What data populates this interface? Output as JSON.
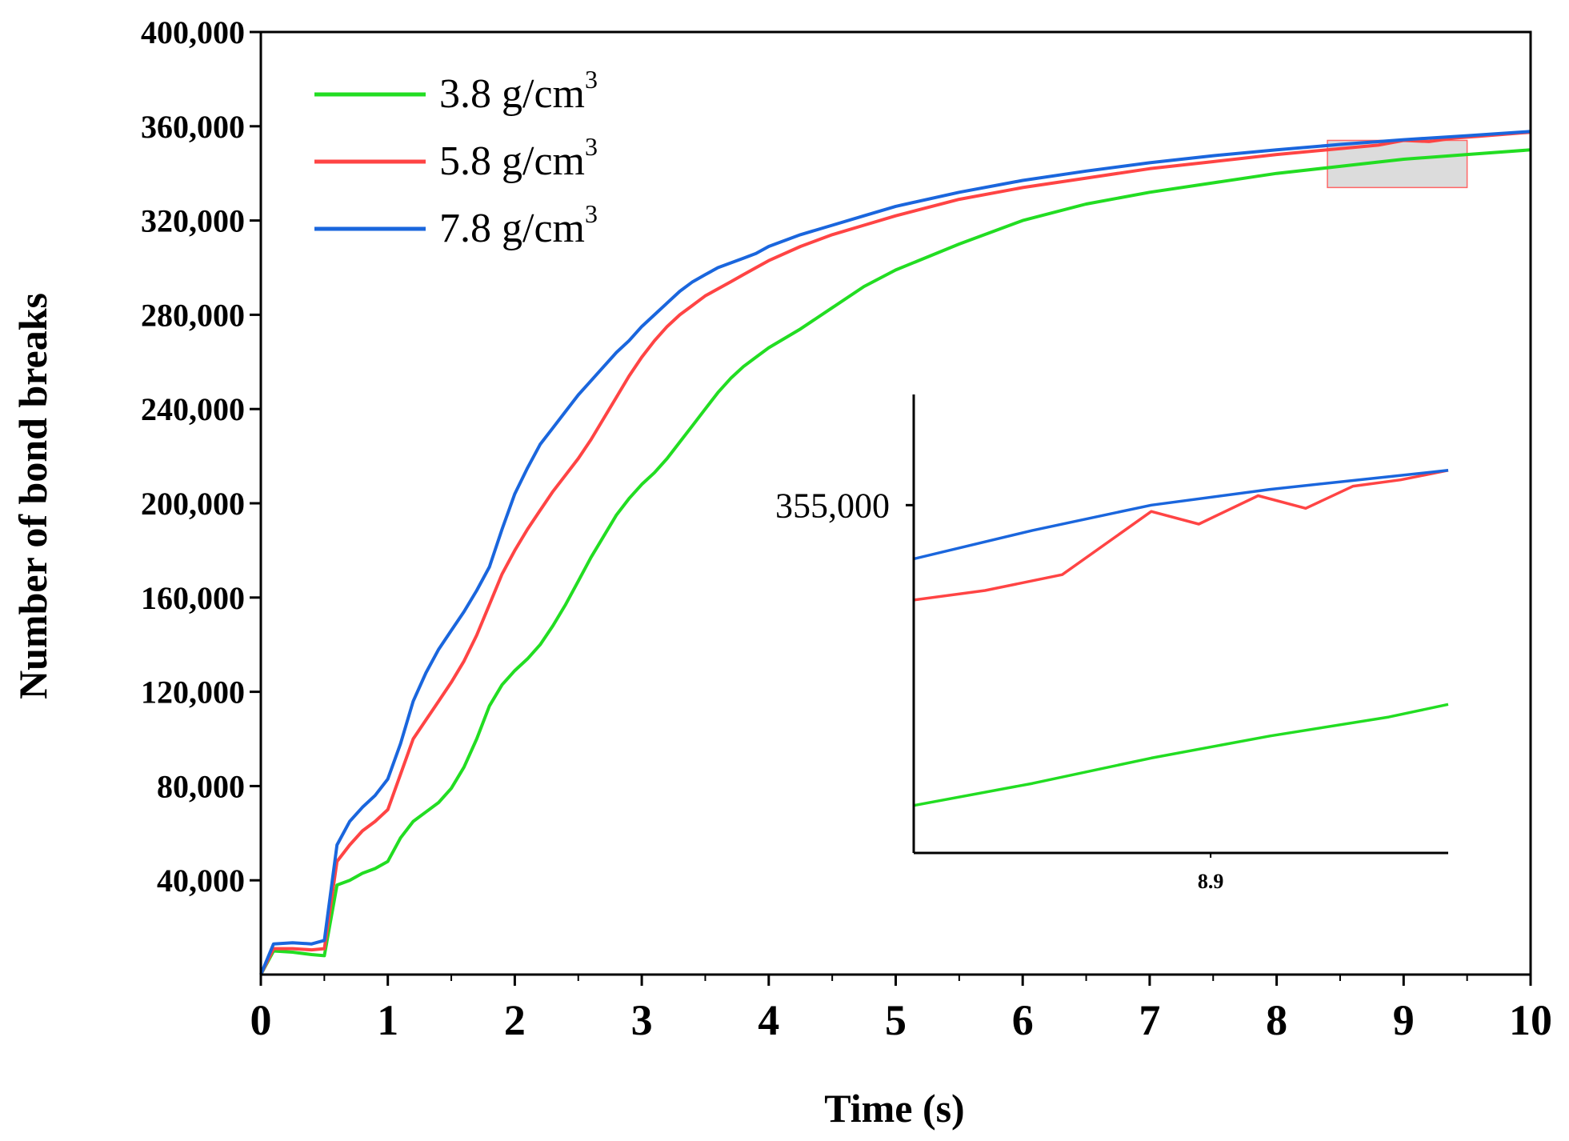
{
  "chart_data": {
    "type": "line",
    "title": "",
    "xlabel": "Time (s)",
    "ylabel": "Number of bond breaks",
    "xlim": [
      0,
      10
    ],
    "ylim": [
      0,
      400000
    ],
    "x_ticks": [
      0,
      1,
      2,
      3,
      4,
      5,
      6,
      7,
      8,
      9,
      10
    ],
    "x_tick_labels": [
      "0",
      "1",
      "2",
      "3",
      "4",
      "5",
      "6",
      "7",
      "8",
      "9",
      "10"
    ],
    "y_ticks": [
      40000,
      80000,
      120000,
      160000,
      200000,
      240000,
      280000,
      320000,
      360000,
      400000
    ],
    "y_tick_labels": [
      "40,000",
      "80,000",
      "120,000",
      "160,000",
      "200,000",
      "240,000",
      "280,000",
      "320,000",
      "360,000",
      "400,000"
    ],
    "legend_position": "top-left",
    "grid": false,
    "series": [
      {
        "name": "3.8 g/cm",
        "name_sup": "3",
        "color": "#22dd22",
        "points": [
          [
            0,
            0
          ],
          [
            0.1,
            10000
          ],
          [
            0.25,
            9500
          ],
          [
            0.4,
            8500
          ],
          [
            0.5,
            8000
          ],
          [
            0.6,
            38000
          ],
          [
            0.7,
            40000
          ],
          [
            0.8,
            43000
          ],
          [
            0.9,
            45000
          ],
          [
            1.0,
            48000
          ],
          [
            1.1,
            58000
          ],
          [
            1.2,
            65000
          ],
          [
            1.3,
            69000
          ],
          [
            1.4,
            73000
          ],
          [
            1.5,
            79000
          ],
          [
            1.6,
            88000
          ],
          [
            1.7,
            100000
          ],
          [
            1.8,
            114000
          ],
          [
            1.9,
            123000
          ],
          [
            2.0,
            129000
          ],
          [
            2.1,
            134000
          ],
          [
            2.2,
            140000
          ],
          [
            2.3,
            148000
          ],
          [
            2.4,
            157000
          ],
          [
            2.5,
            167000
          ],
          [
            2.6,
            177000
          ],
          [
            2.7,
            186000
          ],
          [
            2.8,
            195000
          ],
          [
            2.9,
            202000
          ],
          [
            3.0,
            208000
          ],
          [
            3.1,
            213000
          ],
          [
            3.2,
            219000
          ],
          [
            3.3,
            226000
          ],
          [
            3.4,
            233000
          ],
          [
            3.5,
            240000
          ],
          [
            3.6,
            247000
          ],
          [
            3.7,
            253000
          ],
          [
            3.8,
            258000
          ],
          [
            3.9,
            262000
          ],
          [
            4.0,
            266000
          ],
          [
            4.25,
            274000
          ],
          [
            4.5,
            283000
          ],
          [
            4.75,
            292000
          ],
          [
            5.0,
            299000
          ],
          [
            5.5,
            310000
          ],
          [
            6.0,
            320000
          ],
          [
            6.5,
            327000
          ],
          [
            7.0,
            332000
          ],
          [
            7.5,
            336000
          ],
          [
            8.0,
            340000
          ],
          [
            8.5,
            343000
          ],
          [
            9.0,
            346000
          ],
          [
            9.5,
            348000
          ],
          [
            10.0,
            350000
          ]
        ]
      },
      {
        "name": "5.8 g/cm",
        "name_sup": "3",
        "color": "#ff4444",
        "points": [
          [
            0,
            0
          ],
          [
            0.1,
            11000
          ],
          [
            0.25,
            11000
          ],
          [
            0.4,
            10500
          ],
          [
            0.5,
            11000
          ],
          [
            0.6,
            48000
          ],
          [
            0.7,
            55000
          ],
          [
            0.8,
            61000
          ],
          [
            0.9,
            65000
          ],
          [
            1.0,
            70000
          ],
          [
            1.1,
            85000
          ],
          [
            1.2,
            100000
          ],
          [
            1.3,
            108000
          ],
          [
            1.4,
            116000
          ],
          [
            1.5,
            124000
          ],
          [
            1.6,
            133000
          ],
          [
            1.7,
            144000
          ],
          [
            1.8,
            157000
          ],
          [
            1.9,
            170000
          ],
          [
            2.0,
            180000
          ],
          [
            2.1,
            189000
          ],
          [
            2.2,
            197000
          ],
          [
            2.3,
            205000
          ],
          [
            2.4,
            212000
          ],
          [
            2.5,
            219000
          ],
          [
            2.6,
            227000
          ],
          [
            2.7,
            236000
          ],
          [
            2.8,
            245000
          ],
          [
            2.9,
            254000
          ],
          [
            3.0,
            262000
          ],
          [
            3.1,
            269000
          ],
          [
            3.2,
            275000
          ],
          [
            3.3,
            280000
          ],
          [
            3.4,
            284000
          ],
          [
            3.5,
            288000
          ],
          [
            3.6,
            291000
          ],
          [
            3.7,
            294000
          ],
          [
            3.8,
            297000
          ],
          [
            3.9,
            300000
          ],
          [
            4.0,
            303000
          ],
          [
            4.25,
            309000
          ],
          [
            4.5,
            314000
          ],
          [
            4.75,
            318000
          ],
          [
            5.0,
            322000
          ],
          [
            5.5,
            329000
          ],
          [
            6.0,
            334000
          ],
          [
            6.5,
            338000
          ],
          [
            7.0,
            342000
          ],
          [
            7.5,
            345000
          ],
          [
            8.0,
            348000
          ],
          [
            8.5,
            350500
          ],
          [
            8.8,
            352000
          ],
          [
            9.0,
            354000
          ],
          [
            9.2,
            353500
          ],
          [
            9.4,
            355000
          ],
          [
            9.6,
            355800
          ],
          [
            10.0,
            357500
          ]
        ]
      },
      {
        "name": "7.8 g/cm",
        "name_sup": "3",
        "color": "#1a66dd",
        "points": [
          [
            0,
            0
          ],
          [
            0.1,
            13000
          ],
          [
            0.25,
            13500
          ],
          [
            0.4,
            13000
          ],
          [
            0.5,
            14500
          ],
          [
            0.6,
            55000
          ],
          [
            0.7,
            65000
          ],
          [
            0.8,
            71000
          ],
          [
            0.9,
            76000
          ],
          [
            1.0,
            83000
          ],
          [
            1.1,
            98000
          ],
          [
            1.2,
            116000
          ],
          [
            1.3,
            128000
          ],
          [
            1.4,
            138000
          ],
          [
            1.5,
            146000
          ],
          [
            1.6,
            154000
          ],
          [
            1.7,
            163000
          ],
          [
            1.8,
            173000
          ],
          [
            1.9,
            189000
          ],
          [
            2.0,
            204000
          ],
          [
            2.1,
            215000
          ],
          [
            2.2,
            225000
          ],
          [
            2.3,
            232000
          ],
          [
            2.4,
            239000
          ],
          [
            2.5,
            246000
          ],
          [
            2.6,
            252000
          ],
          [
            2.7,
            258000
          ],
          [
            2.8,
            264000
          ],
          [
            2.9,
            269000
          ],
          [
            3.0,
            275000
          ],
          [
            3.1,
            280000
          ],
          [
            3.2,
            285000
          ],
          [
            3.3,
            290000
          ],
          [
            3.4,
            294000
          ],
          [
            3.5,
            297000
          ],
          [
            3.6,
            300000
          ],
          [
            3.7,
            302000
          ],
          [
            3.8,
            304000
          ],
          [
            3.9,
            306000
          ],
          [
            4.0,
            309000
          ],
          [
            4.25,
            314000
          ],
          [
            4.5,
            318000
          ],
          [
            4.75,
            322000
          ],
          [
            5.0,
            326000
          ],
          [
            5.5,
            332000
          ],
          [
            6.0,
            337000
          ],
          [
            6.5,
            341000
          ],
          [
            7.0,
            344500
          ],
          [
            7.5,
            347500
          ],
          [
            8.0,
            350000
          ],
          [
            8.5,
            352300
          ],
          [
            9.0,
            354300
          ],
          [
            9.5,
            356000
          ],
          [
            10.0,
            357800
          ]
        ]
      }
    ],
    "zoom_region": {
      "xlim": [
        8.4,
        9.5
      ],
      "ylim": [
        334000,
        354000
      ],
      "fill": "#dcdcdc",
      "edge": "#ff6666"
    },
    "inset": {
      "xlim": [
        8.4,
        9.3
      ],
      "ylim": [
        344000,
        358500
      ],
      "x_tick": 8.9,
      "x_tick_label": "8.9",
      "y_tick": 355000,
      "y_tick_label": "355,000",
      "series": [
        {
          "name": "3.8 g/cm3",
          "color": "#22dd22",
          "points": [
            [
              8.4,
              345500
            ],
            [
              8.6,
              346200
            ],
            [
              8.8,
              347000
            ],
            [
              9.0,
              347700
            ],
            [
              9.2,
              348300
            ],
            [
              9.3,
              348700
            ]
          ]
        },
        {
          "name": "5.8 g/cm3",
          "color": "#ff4444",
          "points": [
            [
              8.4,
              352000
            ],
            [
              8.52,
              352300
            ],
            [
              8.65,
              352800
            ],
            [
              8.8,
              354800
            ],
            [
              8.88,
              354400
            ],
            [
              8.98,
              355300
            ],
            [
              9.06,
              354900
            ],
            [
              9.14,
              355600
            ],
            [
              9.22,
              355800
            ],
            [
              9.3,
              356100
            ]
          ]
        },
        {
          "name": "7.8 g/cm3",
          "color": "#1a66dd",
          "points": [
            [
              8.4,
              353300
            ],
            [
              8.6,
              354200
            ],
            [
              8.8,
              355000
            ],
            [
              9.0,
              355500
            ],
            [
              9.2,
              355900
            ],
            [
              9.3,
              356100
            ]
          ]
        }
      ]
    }
  }
}
